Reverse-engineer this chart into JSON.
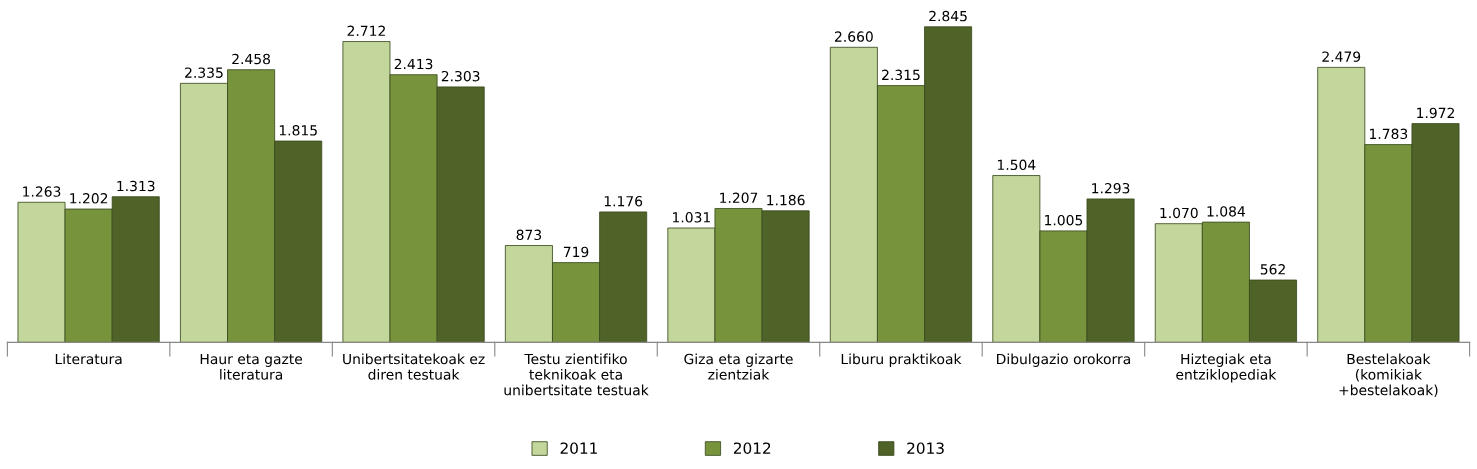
{
  "chart_data": {
    "type": "bar",
    "categories": [
      "Literatura",
      "Haur eta gazte\nliteratura",
      "Unibertsitatekoak ez\ndiren testuak",
      "Testu zientifiko\nteknikoak eta\nunibertsitate testuak",
      "Giza eta gizarte\nzientziak",
      "Liburu praktikoak",
      "Dibulgazio orokorra",
      "Hiztegiak eta\nentziklopediak",
      "Bestelakoak\n(komikiak\n+bestelakoak)"
    ],
    "series": [
      {
        "name": "2011",
        "color": "#c3d69b",
        "values": [
          1263,
          2335,
          2712,
          873,
          1031,
          2660,
          1504,
          1070,
          2479
        ],
        "value_labels": [
          "1.263",
          "2.335",
          "2.712",
          "873",
          "1.031",
          "2.660",
          "1.504",
          "1.070",
          "2.479"
        ]
      },
      {
        "name": "2012",
        "color": "#77933c",
        "values": [
          1202,
          2458,
          2413,
          719,
          1207,
          2315,
          1005,
          1084,
          1783
        ],
        "value_labels": [
          "1.202",
          "2.458",
          "2.413",
          "719",
          "1.207",
          "2.315",
          "1.005",
          "1.084",
          "1.783"
        ]
      },
      {
        "name": "2013",
        "color": "#4f6228",
        "values": [
          1313,
          1815,
          2303,
          1176,
          1186,
          2845,
          1293,
          562,
          1972
        ],
        "value_labels": [
          "1.313",
          "1.815",
          "2.303",
          "1.176",
          "1.186",
          "2.845",
          "1.293",
          "562",
          "1.972"
        ]
      }
    ],
    "legend": "bottom",
    "grid": false
  }
}
